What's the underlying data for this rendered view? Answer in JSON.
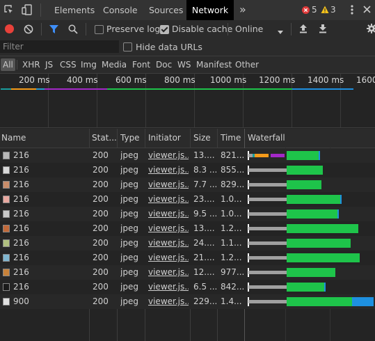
{
  "tabs": [
    {
      "label": "Elements"
    },
    {
      "label": "Console"
    },
    {
      "label": "Sources"
    },
    {
      "label": "Network"
    }
  ],
  "errors_count": "5",
  "warnings_count": "3",
  "toolbar": {
    "preserve_log": "Preserve log",
    "disable_cache": "Disable cache",
    "throttle": "Online"
  },
  "filter": {
    "placeholder": "Filter",
    "hide_data_urls": "Hide data URLs"
  },
  "type_filters": [
    "All",
    "XHR",
    "JS",
    "CSS",
    "Img",
    "Media",
    "Font",
    "Doc",
    "WS",
    "Manifest",
    "Other"
  ],
  "overview": {
    "ticks": [
      "200 ms",
      "400 ms",
      "600 ms",
      "800 ms",
      "1000 ms",
      "1200 ms",
      "1400 ms",
      "1600"
    ]
  },
  "columns": [
    "Name",
    "Stat...",
    "Type",
    "Initiator",
    "Size",
    "Time",
    "Waterfall"
  ],
  "rows": [
    {
      "name": "216",
      "status": "200",
      "type": "jpeg",
      "initiator": "viewer.js...",
      "size": "13....",
      "time": "821..."
    },
    {
      "name": "216",
      "status": "200",
      "type": "jpeg",
      "initiator": "viewer.js...",
      "size": "8.3 ...",
      "time": "855..."
    },
    {
      "name": "216",
      "status": "200",
      "type": "jpeg",
      "initiator": "viewer.js...",
      "size": "7.7 ...",
      "time": "829..."
    },
    {
      "name": "216",
      "status": "200",
      "type": "jpeg",
      "initiator": "viewer.js...",
      "size": "23....",
      "time": "1.0..."
    },
    {
      "name": "216",
      "status": "200",
      "type": "jpeg",
      "initiator": "viewer.js...",
      "size": "9.5 ...",
      "time": "1.0..."
    },
    {
      "name": "216",
      "status": "200",
      "type": "jpeg",
      "initiator": "viewer.js...",
      "size": "13....",
      "time": "1.2..."
    },
    {
      "name": "216",
      "status": "200",
      "type": "jpeg",
      "initiator": "viewer.js...",
      "size": "24....",
      "time": "1.1..."
    },
    {
      "name": "216",
      "status": "200",
      "type": "jpeg",
      "initiator": "viewer.js...",
      "size": "21....",
      "time": "1.2..."
    },
    {
      "name": "216",
      "status": "200",
      "type": "jpeg",
      "initiator": "viewer.js...",
      "size": "12....",
      "time": "977..."
    },
    {
      "name": "216",
      "status": "200",
      "type": "jpeg",
      "initiator": "viewer.js...",
      "size": "6.5 ...",
      "time": "842..."
    },
    {
      "name": "900",
      "status": "200",
      "type": "jpeg",
      "initiator": "viewer.js...",
      "size": "229....",
      "time": "1.4..."
    }
  ],
  "colors": {
    "queue": "#a0a0a0",
    "waiting": "#1ec44a",
    "download": "#1e90e0",
    "ssl": "#a428c8",
    "connect": "#f59b1a",
    "dns": "#1a9e9e"
  }
}
